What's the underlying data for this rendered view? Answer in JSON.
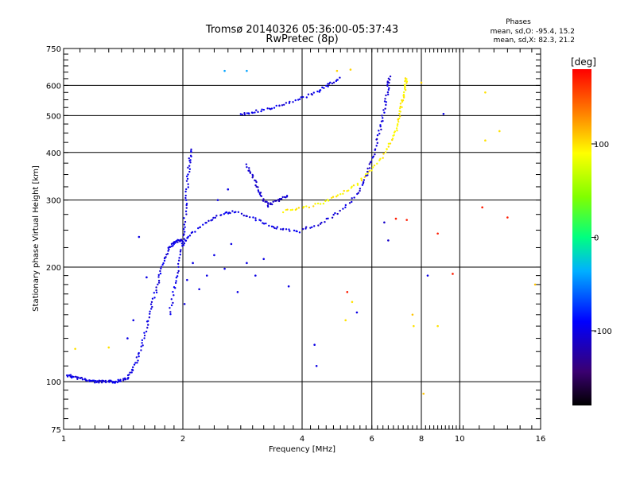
{
  "chart_data": {
    "type": "scatter",
    "title": "Tromsø 20140326 05:36:00-05:37:43",
    "subtitle": "RwPretec (8p)",
    "xlabel": "Frequency [MHz]",
    "ylabel": "Stationary phase Virtual Height [km]",
    "x_scale": "log",
    "y_scale": "log",
    "xlim": [
      1,
      16
    ],
    "ylim": [
      75,
      750
    ],
    "x_ticks": [
      1,
      2,
      4,
      6,
      8,
      10,
      16
    ],
    "y_ticks": [
      75,
      100,
      200,
      300,
      400,
      500,
      600,
      750
    ],
    "grid": true,
    "phase_stats": {
      "header": "Phases",
      "line_o": "mean, sd,O: -95.4, 15.2",
      "line_x": "mean, sd,X: 82.3, 21.2"
    },
    "colorbar": {
      "label": "[deg]",
      "range": [
        -180,
        180
      ],
      "ticks": [
        100,
        0,
        -100
      ]
    },
    "traces": [
      {
        "phase": -100,
        "points": [
          [
            1.02,
            104
          ],
          [
            1.06,
            103
          ],
          [
            1.1,
            102
          ],
          [
            1.15,
            101
          ],
          [
            1.2,
            100
          ],
          [
            1.25,
            100
          ],
          [
            1.3,
            100
          ],
          [
            1.35,
            100
          ],
          [
            1.4,
            101
          ],
          [
            1.45,
            102
          ],
          [
            1.5,
            108
          ],
          [
            1.55,
            118
          ],
          [
            1.6,
            132
          ],
          [
            1.65,
            150
          ],
          [
            1.7,
            170
          ],
          [
            1.75,
            190
          ],
          [
            1.8,
            210
          ],
          [
            1.85,
            225
          ],
          [
            1.9,
            232
          ],
          [
            1.95,
            234
          ],
          [
            2.0,
            235
          ]
        ]
      },
      {
        "phase": -100,
        "points": [
          [
            1.85,
            150
          ],
          [
            1.9,
            175
          ],
          [
            1.95,
            200
          ],
          [
            2.0,
            230
          ],
          [
            2.02,
            260
          ],
          [
            2.04,
            300
          ],
          [
            2.06,
            340
          ],
          [
            2.08,
            380
          ],
          [
            2.1,
            410
          ]
        ]
      },
      {
        "phase": -100,
        "points": [
          [
            2.0,
            230
          ],
          [
            2.1,
            245
          ],
          [
            2.3,
            262
          ],
          [
            2.5,
            275
          ],
          [
            2.7,
            280
          ],
          [
            3.0,
            270
          ],
          [
            3.3,
            258
          ],
          [
            3.6,
            250
          ],
          [
            4.0,
            248
          ]
        ]
      },
      {
        "phase": -105,
        "points": [
          [
            4.0,
            250
          ],
          [
            4.5,
            262
          ],
          [
            5.0,
            280
          ],
          [
            5.5,
            310
          ],
          [
            5.8,
            345
          ],
          [
            6.0,
            380
          ],
          [
            6.2,
            430
          ],
          [
            6.35,
            480
          ],
          [
            6.5,
            540
          ],
          [
            6.6,
            600
          ],
          [
            6.65,
            635
          ]
        ]
      },
      {
        "phase": 95,
        "points": [
          [
            3.6,
            280
          ],
          [
            4.0,
            285
          ],
          [
            4.5,
            295
          ],
          [
            5.0,
            310
          ],
          [
            5.5,
            330
          ],
          [
            6.0,
            360
          ],
          [
            6.5,
            400
          ],
          [
            6.8,
            440
          ],
          [
            7.0,
            480
          ],
          [
            7.1,
            520
          ],
          [
            7.2,
            560
          ],
          [
            7.3,
            600
          ],
          [
            7.35,
            630
          ]
        ]
      },
      {
        "phase": -100,
        "points": [
          [
            2.8,
            505
          ],
          [
            3.0,
            510
          ],
          [
            3.3,
            520
          ],
          [
            3.6,
            535
          ],
          [
            4.0,
            555
          ],
          [
            4.4,
            580
          ],
          [
            4.7,
            605
          ],
          [
            5.0,
            630
          ]
        ]
      },
      {
        "phase": -110,
        "points": [
          [
            2.9,
            370
          ],
          [
            3.0,
            345
          ],
          [
            3.1,
            320
          ],
          [
            3.2,
            300
          ],
          [
            3.3,
            290
          ],
          [
            3.5,
            300
          ],
          [
            3.7,
            310
          ]
        ]
      }
    ],
    "scatter": [
      {
        "x": 2.02,
        "y": 160,
        "phase": -100
      },
      {
        "x": 2.05,
        "y": 185,
        "phase": -100
      },
      {
        "x": 2.12,
        "y": 205,
        "phase": -100
      },
      {
        "x": 2.2,
        "y": 175,
        "phase": -100
      },
      {
        "x": 2.3,
        "y": 190,
        "phase": -100
      },
      {
        "x": 2.4,
        "y": 215,
        "phase": -100
      },
      {
        "x": 2.55,
        "y": 198,
        "phase": -100
      },
      {
        "x": 2.65,
        "y": 230,
        "phase": -100
      },
      {
        "x": 2.75,
        "y": 172,
        "phase": -100
      },
      {
        "x": 2.45,
        "y": 300,
        "phase": -100
      },
      {
        "x": 2.6,
        "y": 320,
        "phase": -100
      },
      {
        "x": 2.9,
        "y": 205,
        "phase": -100
      },
      {
        "x": 3.05,
        "y": 190,
        "phase": -100
      },
      {
        "x": 3.2,
        "y": 210,
        "phase": -100
      },
      {
        "x": 1.55,
        "y": 240,
        "phase": -100
      },
      {
        "x": 1.62,
        "y": 188,
        "phase": -100
      },
      {
        "x": 1.5,
        "y": 145,
        "phase": -100
      },
      {
        "x": 1.45,
        "y": 130,
        "phase": -100
      },
      {
        "x": 3.7,
        "y": 178,
        "phase": -100
      },
      {
        "x": 4.3,
        "y": 125,
        "phase": -100
      },
      {
        "x": 4.35,
        "y": 110,
        "phase": -100
      },
      {
        "x": 5.5,
        "y": 152,
        "phase": -100
      },
      {
        "x": 6.45,
        "y": 262,
        "phase": -110
      },
      {
        "x": 6.6,
        "y": 235,
        "phase": -110
      },
      {
        "x": 8.3,
        "y": 190,
        "phase": -100
      },
      {
        "x": 9.1,
        "y": 505,
        "phase": -100
      },
      {
        "x": 2.9,
        "y": 655,
        "phase": -40
      },
      {
        "x": 5.15,
        "y": 145,
        "phase": 100
      },
      {
        "x": 5.35,
        "y": 162,
        "phase": 100
      },
      {
        "x": 7.65,
        "y": 140,
        "phase": 100
      },
      {
        "x": 7.6,
        "y": 150,
        "phase": 110
      },
      {
        "x": 8.8,
        "y": 140,
        "phase": 100
      },
      {
        "x": 11.6,
        "y": 575,
        "phase": 100
      },
      {
        "x": 11.6,
        "y": 430,
        "phase": 100
      },
      {
        "x": 12.6,
        "y": 455,
        "phase": 100
      },
      {
        "x": 13.2,
        "y": 270,
        "phase": 170
      },
      {
        "x": 8.8,
        "y": 245,
        "phase": 170
      },
      {
        "x": 9.6,
        "y": 192,
        "phase": 170
      },
      {
        "x": 11.4,
        "y": 287,
        "phase": 170
      },
      {
        "x": 7.35,
        "y": 266,
        "phase": 170
      },
      {
        "x": 6.9,
        "y": 268,
        "phase": 170
      },
      {
        "x": 5.2,
        "y": 172,
        "phase": 170
      },
      {
        "x": 8.1,
        "y": 93,
        "phase": 110
      },
      {
        "x": 15.5,
        "y": 180,
        "phase": 110
      },
      {
        "x": 2.55,
        "y": 655,
        "phase": -40
      },
      {
        "x": 1.07,
        "y": 122,
        "phase": 100
      },
      {
        "x": 1.3,
        "y": 123,
        "phase": 100
      },
      {
        "x": 4.9,
        "y": 655,
        "phase": 105
      },
      {
        "x": 5.3,
        "y": 660,
        "phase": 105
      },
      {
        "x": 8.0,
        "y": 610,
        "phase": 105
      }
    ]
  }
}
